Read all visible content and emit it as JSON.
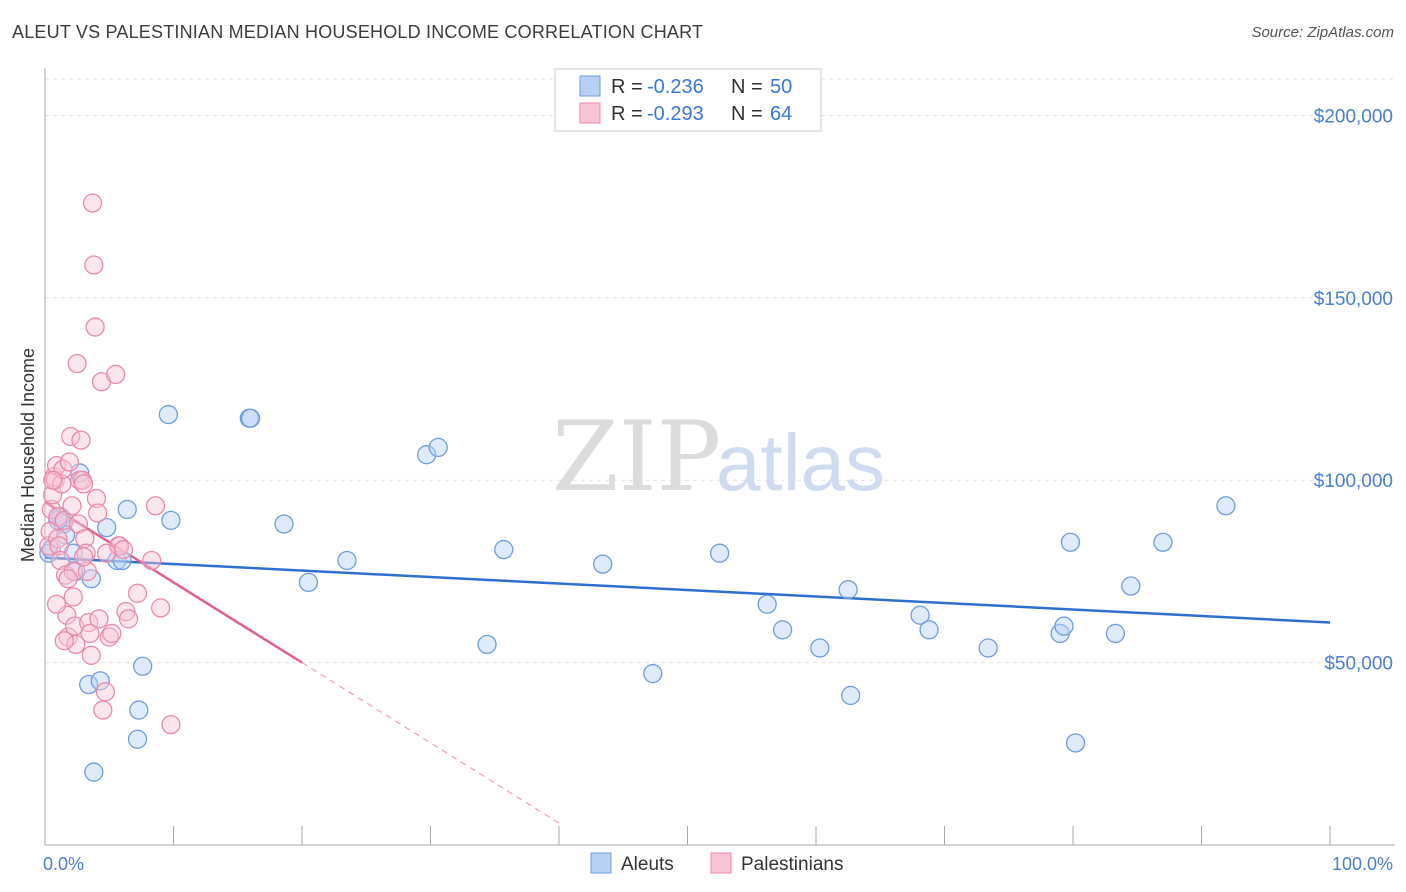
{
  "title": "ALEUT VS PALESTINIAN MEDIAN HOUSEHOLD INCOME CORRELATION CHART",
  "source": "Source: ZipAtlas.com",
  "watermark": {
    "zip": "ZIP",
    "atlas": "atlas"
  },
  "legend": {
    "r_label": "R =",
    "n_label": "N =",
    "rows": [
      {
        "r": "-0.236",
        "n": "50",
        "fill": "#b8d0f3",
        "stroke": "#6f9ee0"
      },
      {
        "r": "-0.293",
        "n": "64",
        "fill": "#f9c5d6",
        "stroke": "#ea8aaa"
      }
    ]
  },
  "bottom_legend": [
    {
      "label": "Aleuts",
      "fill": "#b8d0f3",
      "stroke": "#6f9ee0"
    },
    {
      "label": "Palestinians",
      "fill": "#f9c5d6",
      "stroke": "#ea8aaa"
    }
  ],
  "chart_data": {
    "type": "scatter",
    "title": "ALEUT VS PALESTINIAN MEDIAN HOUSEHOLD INCOME CORRELATION CHART",
    "xlabel": "",
    "ylabel": "Median Household Income",
    "xlim": [
      0,
      100
    ],
    "ylim": [
      0,
      210000
    ],
    "x_tick_labels": [
      "0.0%",
      "100.0%"
    ],
    "y_ticks": [
      50000,
      100000,
      150000,
      200000
    ],
    "y_tick_labels": [
      "$50,000",
      "$100,000",
      "$150,000",
      "$200,000"
    ],
    "grid": true,
    "legend_position": "top-center",
    "series": [
      {
        "name": "Aleuts",
        "color": "#6f9ee0",
        "trend": {
          "x": [
            0,
            100
          ],
          "y": [
            78800,
            61000
          ],
          "style": "solid",
          "color": "#2f6fce"
        },
        "points": [
          [
            0.3,
            80000
          ],
          [
            0.5,
            81000
          ],
          [
            1.2,
            90000
          ],
          [
            1.4,
            88000
          ],
          [
            1.6,
            85000
          ],
          [
            2.2,
            80000
          ],
          [
            2.4,
            75000
          ],
          [
            2.7,
            102000
          ],
          [
            3.4,
            44000
          ],
          [
            3.6,
            73000
          ],
          [
            3.8,
            20000
          ],
          [
            4.3,
            45000
          ],
          [
            4.8,
            87000
          ],
          [
            5.6,
            78000
          ],
          [
            6.4,
            92000
          ],
          [
            7.2,
            29000
          ],
          [
            7.3,
            37000
          ],
          [
            7.6,
            49000
          ],
          [
            9.6,
            118000
          ],
          [
            9.8,
            89000
          ],
          [
            15.9,
            117000
          ],
          [
            16.0,
            117000
          ],
          [
            18.6,
            88000
          ],
          [
            20.5,
            72000
          ],
          [
            23.5,
            78000
          ],
          [
            29.7,
            107000
          ],
          [
            30.6,
            109000
          ],
          [
            34.4,
            55000
          ],
          [
            35.7,
            81000
          ],
          [
            43.4,
            77000
          ],
          [
            47.3,
            47000
          ],
          [
            52.5,
            80000
          ],
          [
            56.2,
            66000
          ],
          [
            57.4,
            59000
          ],
          [
            60.3,
            54000
          ],
          [
            62.5,
            70000
          ],
          [
            62.7,
            41000
          ],
          [
            68.1,
            63000
          ],
          [
            68.8,
            59000
          ],
          [
            73.4,
            54000
          ],
          [
            79.0,
            58000
          ],
          [
            79.3,
            60000
          ],
          [
            79.8,
            83000
          ],
          [
            80.2,
            28000
          ],
          [
            83.3,
            58000
          ],
          [
            84.5,
            71000
          ],
          [
            87.0,
            83000
          ],
          [
            91.9,
            93000
          ],
          [
            1.0,
            89000
          ],
          [
            6.0,
            78000
          ]
        ]
      },
      {
        "name": "Palestinians",
        "color": "#ea8aaa",
        "trend": {
          "x": [
            0,
            20
          ],
          "y": [
            94000,
            50000
          ],
          "style": "solid",
          "color": "#e0608e",
          "extension": {
            "x": [
              20,
              40
            ],
            "y": [
              50000,
              6000
            ],
            "style": "dashed"
          }
        },
        "points": [
          [
            0.3,
            82000
          ],
          [
            0.4,
            86000
          ],
          [
            0.5,
            92000
          ],
          [
            0.6,
            96000
          ],
          [
            0.7,
            101000
          ],
          [
            0.8,
            100000
          ],
          [
            0.9,
            104000
          ],
          [
            1.0,
            90000
          ],
          [
            1.0,
            84000
          ],
          [
            1.1,
            82000
          ],
          [
            1.2,
            78000
          ],
          [
            1.3,
            99000
          ],
          [
            1.4,
            103000
          ],
          [
            1.5,
            89000
          ],
          [
            1.6,
            74000
          ],
          [
            1.7,
            63000
          ],
          [
            1.8,
            57000
          ],
          [
            1.9,
            105000
          ],
          [
            2.0,
            112000
          ],
          [
            2.1,
            93000
          ],
          [
            2.2,
            75000
          ],
          [
            2.3,
            60000
          ],
          [
            2.4,
            55000
          ],
          [
            2.5,
            132000
          ],
          [
            2.6,
            88000
          ],
          [
            2.7,
            100000
          ],
          [
            2.8,
            111000
          ],
          [
            2.9,
            100000
          ],
          [
            3.0,
            99000
          ],
          [
            3.1,
            84000
          ],
          [
            3.2,
            80000
          ],
          [
            3.3,
            75000
          ],
          [
            3.4,
            61000
          ],
          [
            3.5,
            58000
          ],
          [
            3.6,
            52000
          ],
          [
            3.7,
            176000
          ],
          [
            3.8,
            159000
          ],
          [
            3.9,
            142000
          ],
          [
            4.0,
            95000
          ],
          [
            4.1,
            91000
          ],
          [
            4.2,
            62000
          ],
          [
            4.4,
            127000
          ],
          [
            4.5,
            37000
          ],
          [
            4.7,
            42000
          ],
          [
            5.0,
            57000
          ],
          [
            5.2,
            58000
          ],
          [
            5.5,
            129000
          ],
          [
            5.7,
            82000
          ],
          [
            5.8,
            82000
          ],
          [
            6.1,
            81000
          ],
          [
            6.3,
            64000
          ],
          [
            6.5,
            62000
          ],
          [
            7.2,
            69000
          ],
          [
            8.3,
            78000
          ],
          [
            8.6,
            93000
          ],
          [
            9.0,
            65000
          ],
          [
            9.8,
            33000
          ],
          [
            1.5,
            56000
          ],
          [
            2.2,
            68000
          ],
          [
            3.0,
            79000
          ],
          [
            0.9,
            66000
          ],
          [
            1.8,
            73000
          ],
          [
            4.8,
            80000
          ],
          [
            0.6,
            100000
          ]
        ]
      }
    ]
  }
}
